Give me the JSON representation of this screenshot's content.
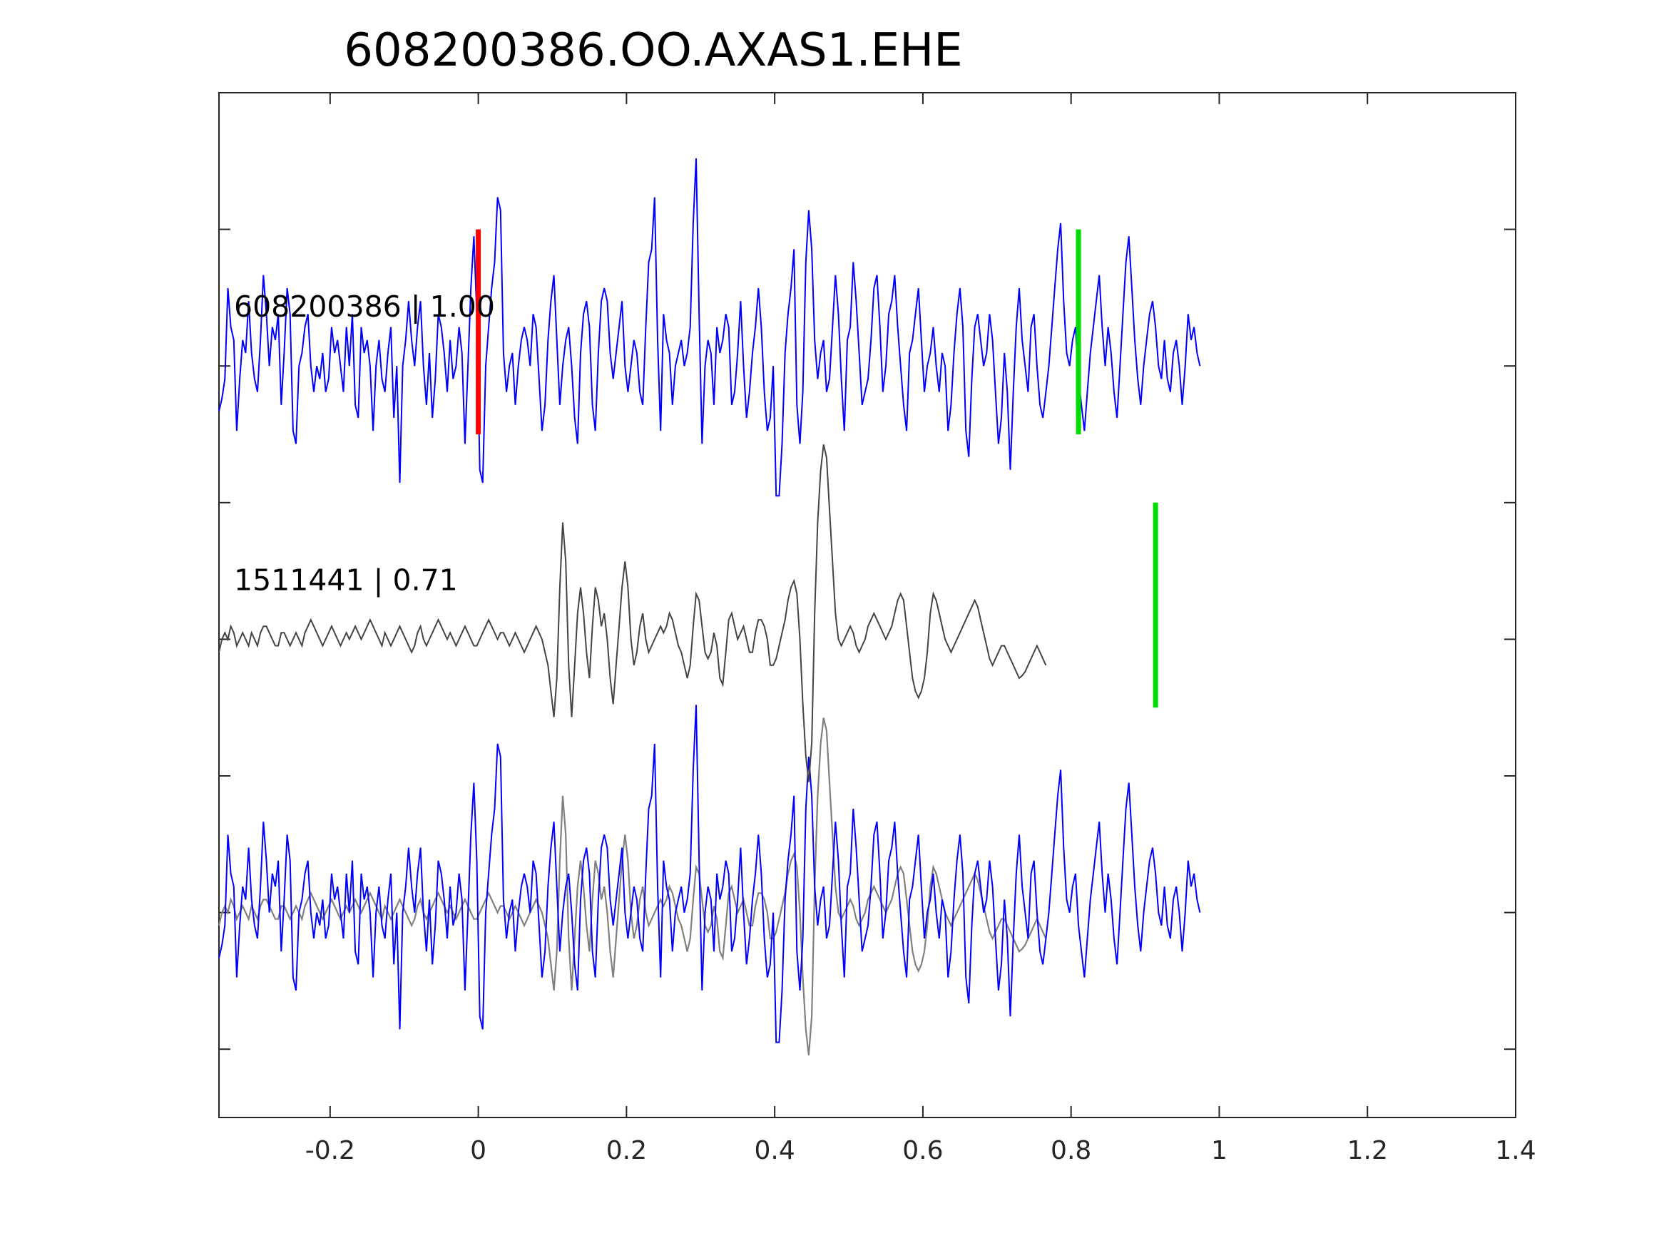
{
  "chart_data": {
    "type": "line",
    "title": "608200386.OO.AXAS1.EHE",
    "xlabel": "",
    "ylabel": "",
    "xlim": [
      -0.35,
      1.4
    ],
    "ylim": [
      -0.5,
      7
    ],
    "x_ticks": [
      -0.2,
      0,
      0.2,
      0.4,
      0.6,
      0.8,
      1,
      1.2,
      1.4
    ],
    "x_tick_labels": [
      "-0.2",
      "0",
      "0.2",
      "0.4",
      "0.6",
      "0.8",
      "1",
      "1.2",
      "1.4"
    ],
    "y_ticks": [
      0,
      1,
      2,
      3,
      4,
      5,
      6
    ],
    "grid": false,
    "legend": "none",
    "sample_interval": 0.004,
    "traces": [
      {
        "label": "608200386 | 1.00",
        "baseline": 5,
        "color": "#0000ff",
        "amplitudes": [
          -0.35,
          -0.25,
          -0.1,
          0.6,
          0.3,
          0.2,
          -0.5,
          -0.1,
          0.2,
          0.1,
          0.5,
          0.1,
          -0.1,
          -0.2,
          0.2,
          0.7,
          0.4,
          0.0,
          0.3,
          0.2,
          0.4,
          -0.3,
          0.1,
          0.6,
          0.4,
          -0.5,
          -0.6,
          0.0,
          0.1,
          0.3,
          0.4,
          0.0,
          -0.2,
          0.0,
          -0.1,
          0.1,
          -0.2,
          -0.1,
          0.3,
          0.1,
          0.2,
          0.0,
          -0.2,
          0.3,
          0.0,
          0.4,
          -0.3,
          -0.4,
          0.3,
          0.1,
          0.2,
          0.0,
          -0.5,
          0.0,
          0.2,
          -0.1,
          -0.2,
          0.1,
          0.3,
          -0.4,
          0.0,
          -0.9,
          0.0,
          0.2,
          0.5,
          0.2,
          0.0,
          0.3,
          0.5,
          0.0,
          -0.3,
          0.1,
          -0.4,
          -0.1,
          0.4,
          0.3,
          0.1,
          -0.2,
          0.2,
          -0.1,
          0.0,
          0.3,
          0.1,
          -0.6,
          0.0,
          0.6,
          1.0,
          0.4,
          -0.8,
          -0.9,
          0.0,
          0.3,
          0.6,
          0.8,
          1.3,
          1.2,
          0.1,
          -0.2,
          0.0,
          0.1,
          -0.3,
          0.0,
          0.2,
          0.3,
          0.2,
          0.0,
          0.4,
          0.3,
          -0.1,
          -0.5,
          -0.3,
          0.2,
          0.5,
          0.7,
          0.2,
          -0.3,
          0.0,
          0.2,
          0.3,
          0.0,
          -0.4,
          -0.6,
          0.1,
          0.4,
          0.5,
          0.3,
          -0.3,
          -0.5,
          0.1,
          0.5,
          0.6,
          0.5,
          0.1,
          -0.1,
          0.1,
          0.3,
          0.5,
          0.0,
          -0.2,
          0.0,
          0.2,
          0.1,
          -0.2,
          -0.3,
          0.3,
          0.8,
          0.9,
          1.3,
          0.2,
          -0.5,
          0.4,
          0.2,
          0.1,
          -0.3,
          0.0,
          0.1,
          0.2,
          0.0,
          0.1,
          0.3,
          1.1,
          1.6,
          0.4,
          -0.6,
          0.0,
          0.2,
          0.1,
          -0.3,
          0.3,
          0.1,
          0.2,
          0.4,
          0.3,
          -0.3,
          -0.2,
          0.1,
          0.5,
          0.0,
          -0.4,
          -0.2,
          0.1,
          0.3,
          0.6,
          0.3,
          -0.2,
          -0.5,
          -0.4,
          0.0,
          -1.0,
          -1.0,
          -0.6,
          0.1,
          0.4,
          0.6,
          0.9,
          -0.3,
          -0.6,
          -0.2,
          0.8,
          1.2,
          0.9,
          0.2,
          -0.1,
          0.1,
          0.2,
          -0.2,
          -0.1,
          0.3,
          0.7,
          0.4,
          -0.1,
          -0.5,
          0.2,
          0.3,
          0.8,
          0.5,
          0.1,
          -0.3,
          -0.2,
          -0.1,
          0.2,
          0.6,
          0.7,
          0.3,
          -0.2,
          0.0,
          0.4,
          0.5,
          0.7,
          0.3,
          0.0,
          -0.3,
          -0.5,
          0.1,
          0.2,
          0.4,
          0.6,
          0.2,
          -0.2,
          0.0,
          0.1,
          0.3,
          0.0,
          -0.2,
          0.1,
          0.0,
          -0.5,
          -0.3,
          0.1,
          0.4,
          0.6,
          0.3,
          -0.5,
          -0.7,
          -0.1,
          0.3,
          0.4,
          0.2,
          0.0,
          0.1,
          0.4,
          0.2,
          -0.2,
          -0.6,
          -0.4,
          0.1,
          -0.2,
          -0.8,
          -0.2,
          0.3,
          0.6,
          0.2,
          0.0,
          -0.2,
          0.3,
          0.4,
          0.0,
          -0.3,
          -0.4,
          -0.2,
          0.0,
          0.3,
          0.6,
          0.9,
          1.1,
          0.5,
          0.1,
          0.0,
          0.2,
          0.3,
          -0.1,
          -0.3,
          -0.5,
          -0.2,
          0.1,
          0.3,
          0.5,
          0.7,
          0.3,
          0.0,
          0.3,
          0.1,
          -0.2,
          -0.4,
          0.0,
          0.4,
          0.8,
          1.0,
          0.6,
          0.2,
          -0.1,
          -0.3,
          0.0,
          0.2,
          0.4,
          0.5,
          0.3,
          0.0,
          -0.1,
          0.2,
          -0.1,
          -0.2,
          0.1,
          0.2,
          0.0,
          -0.3,
          0.0,
          0.4,
          0.2,
          0.3,
          0.1,
          0.0
        ],
        "picks": [
          {
            "x": 0.0,
            "color": "#ff0000"
          },
          {
            "x": 0.81,
            "color": "#00dd00"
          }
        ]
      },
      {
        "label": "1511441 | 0.71",
        "baseline": 3,
        "color": "#444444",
        "amplitudes": [
          -0.1,
          0.0,
          0.05,
          0.0,
          0.1,
          0.05,
          -0.05,
          0.0,
          0.05,
          0.0,
          -0.05,
          0.05,
          0.0,
          -0.05,
          0.05,
          0.1,
          0.1,
          0.05,
          0.0,
          -0.05,
          -0.05,
          0.05,
          0.05,
          0.0,
          -0.05,
          0.0,
          0.05,
          0.0,
          -0.05,
          0.05,
          0.1,
          0.15,
          0.1,
          0.05,
          0.0,
          -0.05,
          0.0,
          0.05,
          0.1,
          0.05,
          0.0,
          -0.05,
          0.0,
          0.05,
          0.0,
          0.05,
          0.1,
          0.05,
          0.0,
          0.05,
          0.1,
          0.15,
          0.1,
          0.05,
          0.0,
          -0.05,
          0.05,
          0.0,
          -0.05,
          0.0,
          0.05,
          0.1,
          0.05,
          0.0,
          -0.05,
          -0.1,
          -0.05,
          0.05,
          0.1,
          0.0,
          -0.05,
          0.0,
          0.05,
          0.1,
          0.15,
          0.1,
          0.05,
          0.0,
          0.05,
          0.0,
          -0.05,
          0.0,
          0.05,
          0.1,
          0.05,
          0.0,
          -0.05,
          -0.05,
          0.0,
          0.05,
          0.1,
          0.15,
          0.1,
          0.05,
          0.0,
          0.05,
          0.05,
          0.0,
          -0.05,
          0.0,
          0.05,
          0.0,
          -0.05,
          -0.1,
          -0.05,
          0.0,
          0.05,
          0.1,
          0.05,
          0.0,
          -0.1,
          -0.2,
          -0.4,
          -0.6,
          -0.3,
          0.4,
          0.9,
          0.6,
          -0.2,
          -0.6,
          -0.2,
          0.2,
          0.4,
          0.2,
          -0.1,
          -0.3,
          0.1,
          0.4,
          0.3,
          0.1,
          0.2,
          0.0,
          -0.3,
          -0.5,
          -0.2,
          0.1,
          0.4,
          0.6,
          0.4,
          0.0,
          -0.2,
          -0.1,
          0.1,
          0.2,
          0.0,
          -0.1,
          -0.05,
          0.0,
          0.05,
          0.1,
          0.05,
          0.1,
          0.2,
          0.15,
          0.05,
          -0.05,
          -0.1,
          -0.2,
          -0.3,
          -0.2,
          0.1,
          0.35,
          0.3,
          0.1,
          -0.1,
          -0.15,
          -0.1,
          0.05,
          -0.05,
          -0.3,
          -0.35,
          -0.1,
          0.15,
          0.2,
          0.1,
          0.0,
          0.05,
          0.1,
          0.0,
          -0.1,
          -0.1,
          0.05,
          0.15,
          0.15,
          0.1,
          0.0,
          -0.2,
          -0.2,
          -0.15,
          -0.05,
          0.05,
          0.15,
          0.3,
          0.4,
          0.45,
          0.35,
          0.0,
          -0.5,
          -0.9,
          -1.1,
          -0.8,
          0.2,
          0.9,
          1.3,
          1.5,
          1.4,
          1.0,
          0.6,
          0.2,
          0.0,
          -0.05,
          0.0,
          0.05,
          0.1,
          0.05,
          -0.05,
          -0.1,
          -0.05,
          0.0,
          0.1,
          0.15,
          0.2,
          0.15,
          0.1,
          0.05,
          0.0,
          0.05,
          0.1,
          0.2,
          0.3,
          0.35,
          0.3,
          0.1,
          -0.1,
          -0.3,
          -0.4,
          -0.45,
          -0.4,
          -0.3,
          -0.1,
          0.2,
          0.35,
          0.3,
          0.2,
          0.1,
          0.0,
          -0.05,
          -0.1,
          -0.05,
          0.0,
          0.05,
          0.1,
          0.15,
          0.2,
          0.25,
          0.3,
          0.25,
          0.15,
          0.05,
          -0.05,
          -0.15,
          -0.2,
          -0.15,
          -0.1,
          -0.05,
          -0.05,
          -0.1,
          -0.15,
          -0.2,
          -0.25,
          -0.3,
          -0.28,
          -0.25,
          -0.2,
          -0.15,
          -0.1,
          -0.05,
          -0.1,
          -0.15,
          -0.2
        ],
        "picks": [
          {
            "x": 0.914,
            "color": "#00dd00"
          }
        ]
      }
    ],
    "overlay_baseline": 1
  }
}
